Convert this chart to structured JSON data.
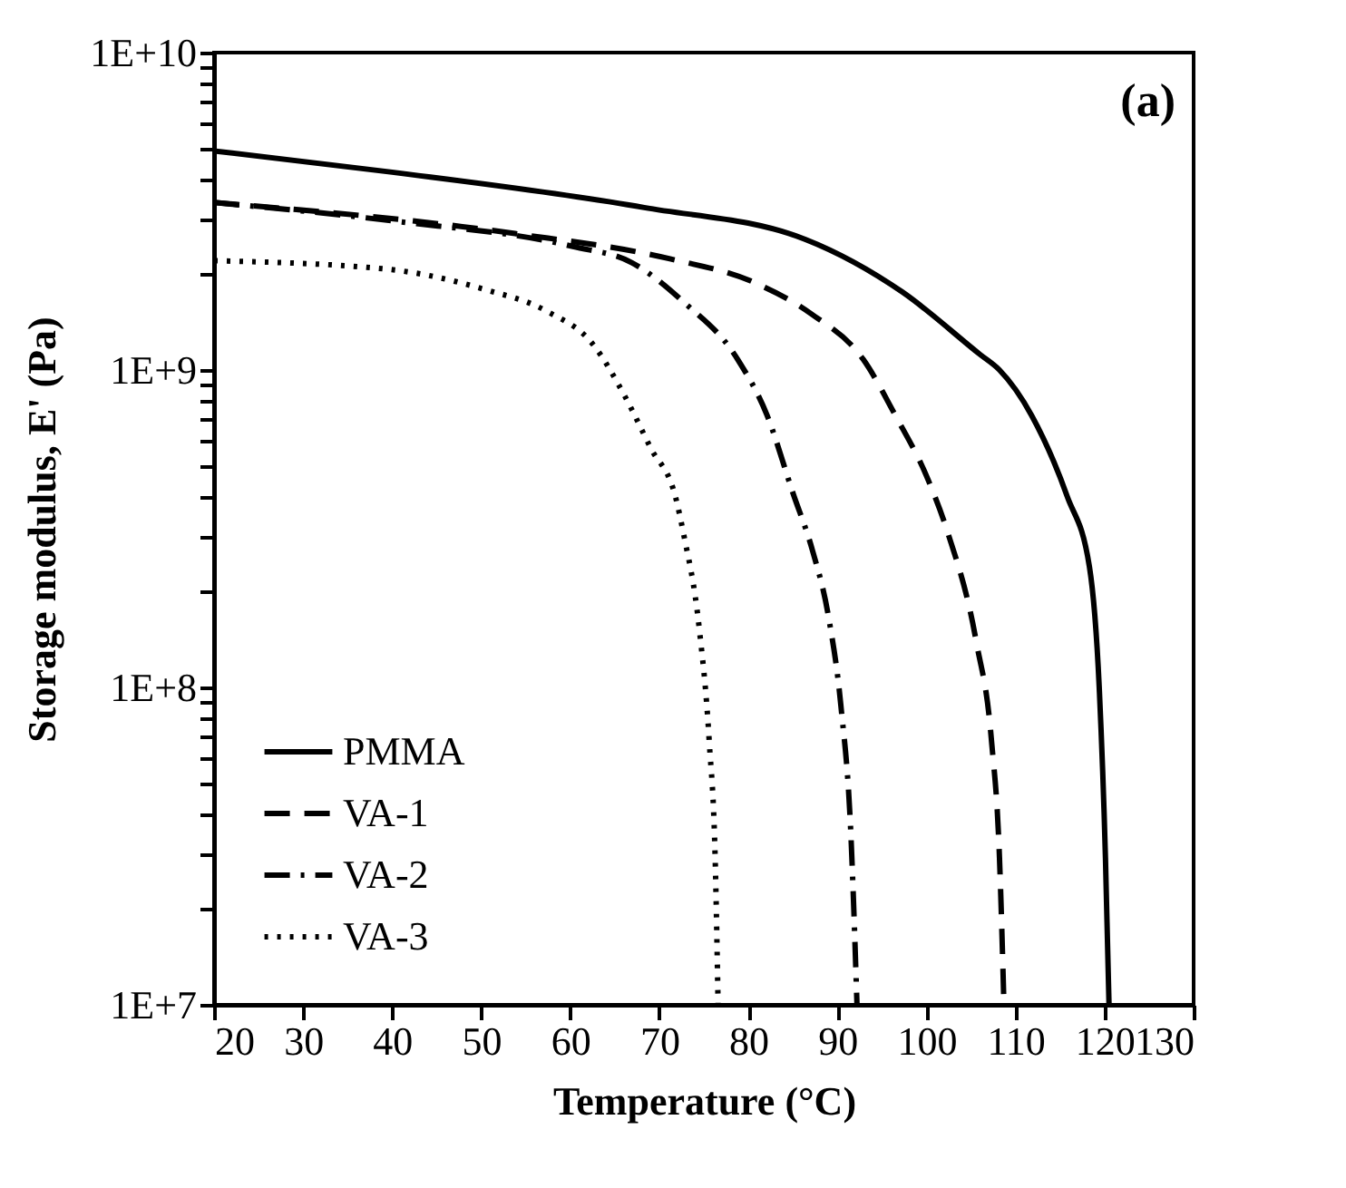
{
  "chart_data": {
    "type": "line",
    "xlabel": "Temperature (°C)",
    "ylabel": "Storage modulus, E' (Pa)",
    "annotations": [
      "(a)"
    ],
    "log": "y",
    "grid": false,
    "legend": "bottom left",
    "marker": "none",
    "xlim": [
      20,
      130
    ],
    "xticks": [
      20,
      30,
      40,
      50,
      60,
      70,
      80,
      90,
      100,
      110,
      120,
      130
    ],
    "ylim": [
      10000000,
      10000000000
    ],
    "yticks": [
      {
        "value": 10000000,
        "label": "1E+7"
      },
      {
        "value": 20000000,
        "label": null
      },
      {
        "value": 30000000,
        "label": null
      },
      {
        "value": 40000000,
        "label": null
      },
      {
        "value": 50000000,
        "label": null
      },
      {
        "value": 60000000,
        "label": null
      },
      {
        "value": 70000000,
        "label": null
      },
      {
        "value": 80000000,
        "label": null
      },
      {
        "value": 90000000,
        "label": null
      },
      {
        "value": 100000000,
        "label": "1E+8"
      },
      {
        "value": 200000000,
        "label": null
      },
      {
        "value": 300000000,
        "label": null
      },
      {
        "value": 400000000,
        "label": null
      },
      {
        "value": 500000000,
        "label": null
      },
      {
        "value": 600000000,
        "label": null
      },
      {
        "value": 700000000,
        "label": null
      },
      {
        "value": 800000000,
        "label": null
      },
      {
        "value": 900000000,
        "label": null
      },
      {
        "value": 1000000000,
        "label": "1E+9"
      },
      {
        "value": 2000000000,
        "label": null
      },
      {
        "value": 3000000000,
        "label": null
      },
      {
        "value": 4000000000,
        "label": null
      },
      {
        "value": 5000000000,
        "label": null
      },
      {
        "value": 6000000000,
        "label": null
      },
      {
        "value": 7000000000,
        "label": null
      },
      {
        "value": 8000000000,
        "label": null
      },
      {
        "value": 9000000000,
        "label": null
      },
      {
        "value": 10000000000,
        "label": "1E+10"
      }
    ],
    "series": [
      {
        "name": "PMMA",
        "color": "#000000",
        "line_style": "solid",
        "x": [
          20,
          40,
          68.3,
          86.4,
          97.3,
          106,
          108.2,
          111.8,
          115.8,
          118.3,
          119.4,
          120.1,
          120.5
        ],
        "values": [
          4900000000,
          4200000000,
          3250000000,
          2580000000,
          1760000000,
          1120000000,
          1000000000,
          720000000,
          400000000,
          240000000,
          100000000,
          29000000,
          10000000
        ]
      },
      {
        "name": "VA-1",
        "color": "#000000",
        "line_style": "dashed",
        "x": [
          20,
          53.8,
          71.2,
          80.6,
          87.1,
          92.9,
          96.5,
          100.2,
          102.4,
          105.6,
          107.3,
          108.2,
          108.7
        ],
        "values": [
          3370000000,
          2690000000,
          2240000000,
          1890000000,
          1500000000,
          1080000000,
          720000000,
          450000000,
          307000000,
          139000000,
          68000000,
          29000000,
          10000000
        ]
      },
      {
        "name": "VA-2",
        "color": "#000000",
        "line_style": "dashdot",
        "x": [
          20,
          40,
          60.3,
          66.9,
          72.7,
          78.8,
          82.1,
          85,
          87.2,
          89,
          90.4,
          91.5,
          92.2
        ],
        "values": [
          3370000000,
          2950000000,
          2450000000,
          2180000000,
          1640000000,
          1080000000,
          720000000,
          410000000,
          270000000,
          167000000,
          87000000,
          35000000,
          10000000
        ]
      },
      {
        "name": "VA-3",
        "color": "#000000",
        "line_style": "dotted",
        "x": [
          20,
          39.3,
          50.2,
          57.4,
          62.5,
          66.1,
          69,
          71.9,
          72.7,
          74.5,
          75.6,
          76.3,
          76.6
        ],
        "values": [
          2210000000,
          2080000000,
          1800000000,
          1530000000,
          1210000000,
          830000000,
          570000000,
          390000000,
          307000000,
          152000000,
          68000000,
          27000000,
          10000000
        ]
      }
    ]
  }
}
